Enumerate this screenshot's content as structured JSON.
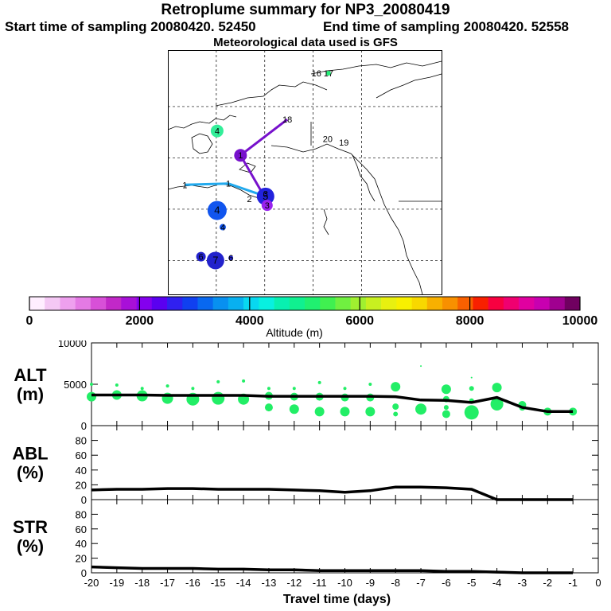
{
  "header": {
    "title": "Retroplume summary for NP3_20080419",
    "start_time": "Start time of sampling 20080420. 52450",
    "end_time": "End time of sampling 20080420. 52558",
    "met_data": "Meteorological data used is GFS"
  },
  "map": {
    "markers": [
      {
        "label": "16",
        "lon": -153.6,
        "lat": 70.6,
        "size": 0,
        "color": "#00cc44"
      },
      {
        "label": "17",
        "lon": -152.1,
        "lat": 70.6,
        "size": 3,
        "color": "#22ee77"
      },
      {
        "label": "18",
        "lon": -157.2,
        "lat": 67.0,
        "size": 0,
        "color": "#33cc55"
      },
      {
        "label": "20",
        "lon": -152.2,
        "lat": 65.5,
        "size": 0,
        "color": "#55dd33"
      },
      {
        "label": "19",
        "lon": -150.2,
        "lat": 65.2,
        "size": 0,
        "color": "#55dd33"
      },
      {
        "label": "4",
        "lon": -165.9,
        "lat": 66.1,
        "size": 8,
        "color": "#33ee99"
      },
      {
        "label": "1",
        "lon": -163.0,
        "lat": 64.2,
        "size": 8,
        "color": "#7711cc"
      },
      {
        "label": "1",
        "lon": -164.5,
        "lat": 62.0,
        "size": 0,
        "color": "#00ccff"
      },
      {
        "label": "1",
        "lon": -169.9,
        "lat": 61.9,
        "size": 0,
        "color": "#00ccff"
      },
      {
        "label": "5",
        "lon": -159.9,
        "lat": 61.0,
        "size": 11,
        "color": "#2222dd"
      },
      {
        "label": "3",
        "lon": -159.9,
        "lat": 61.2,
        "size": 0,
        "color": "#2222dd"
      },
      {
        "label": "2",
        "lon": -161.9,
        "lat": 60.8,
        "size": 0,
        "color": "#2222dd"
      },
      {
        "label": "3",
        "lon": -159.7,
        "lat": 60.3,
        "size": 7,
        "color": "#9922ee"
      },
      {
        "label": "4",
        "lon": -165.9,
        "lat": 59.9,
        "size": 12,
        "color": "#1155ee"
      },
      {
        "label": "4",
        "lon": -165.2,
        "lat": 58.6,
        "size": 4,
        "color": "#1155ee"
      },
      {
        "label": "7",
        "lon": -166.1,
        "lat": 56.0,
        "size": 11,
        "color": "#2222cc"
      },
      {
        "label": "6",
        "lon": -167.9,
        "lat": 56.3,
        "size": 6,
        "color": "#2222cc"
      },
      {
        "label": "6",
        "lon": -164.2,
        "lat": 56.2,
        "size": 3,
        "color": "#2222cc"
      }
    ],
    "paths": [
      {
        "color": "#7711cc",
        "points": [
          [
            -157.2,
            67.0
          ],
          [
            -163.0,
            64.2
          ],
          [
            -159.7,
            60.6
          ]
        ]
      },
      {
        "color": "#22aaee",
        "points": [
          [
            -169.9,
            61.9
          ],
          [
            -164.5,
            62.0
          ],
          [
            -159.9,
            61.0
          ]
        ]
      }
    ]
  },
  "colorbar": {
    "label": "Altitude (m)",
    "tick_labels": [
      "0",
      "2000",
      "4000",
      "6000",
      "8000",
      "10000"
    ],
    "colors": [
      "#ffeeff",
      "#f4c8f4",
      "#eea0ee",
      "#e47ae4",
      "#d850d8",
      "#c228c8",
      "#a810d8",
      "#8400ee",
      "#5a00f0",
      "#3020f0",
      "#1040f0",
      "#0868f0",
      "#0890f0",
      "#08b0f0",
      "#08d8f0",
      "#08f0e0",
      "#08f0b0",
      "#10f090",
      "#20f070",
      "#40f050",
      "#70f040",
      "#a0f030",
      "#c8f020",
      "#e8f010",
      "#f8f000",
      "#f8d800",
      "#f8b000",
      "#f89000",
      "#f86000",
      "#f82000",
      "#f80040",
      "#f00070",
      "#e000a0",
      "#c800b0",
      "#a00090",
      "#700060"
    ]
  },
  "chart_data": [
    {
      "type": "scatter",
      "name": "ALT",
      "ylabel": "ALT\n(m)",
      "ylim": [
        0,
        10000
      ],
      "y_ticks": [
        0,
        5000,
        10000
      ],
      "line_x": [
        -20,
        -19,
        -18,
        -17,
        -16,
        -15,
        -14,
        -13,
        -12,
        -11,
        -10,
        -9,
        -8,
        -7,
        -6,
        -5,
        -4,
        -3,
        -2,
        -1
      ],
      "line_y": [
        3700,
        3700,
        3700,
        3650,
        3650,
        3650,
        3650,
        3550,
        3550,
        3550,
        3550,
        3550,
        3500,
        3100,
        3050,
        2800,
        3400,
        2200,
        1700,
        1700
      ],
      "points": [
        [
          -20,
          3500,
          6
        ],
        [
          -20,
          5000,
          2
        ],
        [
          -19,
          3700,
          6
        ],
        [
          -19,
          4900,
          2
        ],
        [
          -18,
          3600,
          7
        ],
        [
          -18,
          4500,
          2
        ],
        [
          -17,
          3300,
          7
        ],
        [
          -17,
          4800,
          2
        ],
        [
          -16,
          3200,
          8
        ],
        [
          -16,
          4500,
          2
        ],
        [
          -15,
          3300,
          8
        ],
        [
          -15,
          5300,
          2
        ],
        [
          -14,
          3200,
          7
        ],
        [
          -14,
          5400,
          2
        ],
        [
          -13,
          3600,
          5
        ],
        [
          -13,
          4500,
          2
        ],
        [
          -13,
          2200,
          5
        ],
        [
          -12,
          3500,
          5
        ],
        [
          -12,
          4500,
          2
        ],
        [
          -12,
          2000,
          6
        ],
        [
          -11,
          3500,
          5
        ],
        [
          -11,
          5200,
          2
        ],
        [
          -11,
          1700,
          6
        ],
        [
          -10,
          3400,
          5
        ],
        [
          -10,
          4500,
          2
        ],
        [
          -10,
          1700,
          6
        ],
        [
          -9,
          3400,
          5
        ],
        [
          -9,
          5000,
          2
        ],
        [
          -9,
          1700,
          6
        ],
        [
          -8,
          4700,
          6
        ],
        [
          -8,
          2300,
          4
        ],
        [
          -8,
          1400,
          3
        ],
        [
          -7,
          2000,
          7
        ],
        [
          -7,
          7200,
          1
        ],
        [
          -6,
          4400,
          6
        ],
        [
          -6,
          3200,
          4
        ],
        [
          -6,
          1400,
          5
        ],
        [
          -6,
          2200,
          3
        ],
        [
          -5,
          1600,
          9
        ],
        [
          -5,
          3000,
          3
        ],
        [
          -5,
          4500,
          3
        ],
        [
          -5,
          5800,
          1
        ],
        [
          -4,
          4600,
          6
        ],
        [
          -4,
          2600,
          8
        ],
        [
          -3,
          2500,
          5
        ],
        [
          -3,
          2200,
          4
        ],
        [
          -2,
          1700,
          5
        ],
        [
          -1,
          1700,
          5
        ]
      ]
    },
    {
      "type": "line",
      "name": "ABL",
      "ylabel": "ABL\n(%)",
      "ylim": [
        0,
        100
      ],
      "y_ticks": [
        0,
        20,
        40,
        60,
        80
      ],
      "x": [
        -20,
        -19,
        -18,
        -17,
        -16,
        -15,
        -14,
        -13,
        -12,
        -11,
        -10,
        -9,
        -8,
        -7,
        -6,
        -5,
        -4,
        -3,
        -2,
        -1
      ],
      "y": [
        13,
        14,
        14,
        15,
        15,
        14,
        14,
        14,
        13,
        12,
        10,
        12,
        17,
        17,
        16,
        14,
        0,
        0,
        0,
        0
      ]
    },
    {
      "type": "line",
      "name": "STR",
      "ylabel": "STR\n(%)",
      "ylim": [
        0,
        100
      ],
      "y_ticks": [
        0,
        20,
        40,
        60,
        80
      ],
      "x": [
        -20,
        -19,
        -18,
        -17,
        -16,
        -15,
        -14,
        -13,
        -12,
        -11,
        -10,
        -9,
        -8,
        -7,
        -6,
        -5,
        -4,
        -3,
        -2,
        -1
      ],
      "y": [
        8,
        7,
        6,
        6,
        6,
        5,
        5,
        4,
        4,
        3,
        3,
        3,
        3,
        3,
        2,
        2,
        1,
        0,
        0,
        0
      ],
      "xlabel": "Travel time (days)",
      "x_tick_labels": [
        "-20",
        "-19",
        "-18",
        "-17",
        "-16",
        "-15",
        "-14",
        "-13",
        "-12",
        "-11",
        "-10",
        "-9",
        "-8",
        "-7",
        "-6",
        "-5",
        "-4",
        "-3",
        "-2",
        "-1",
        "0"
      ]
    }
  ]
}
